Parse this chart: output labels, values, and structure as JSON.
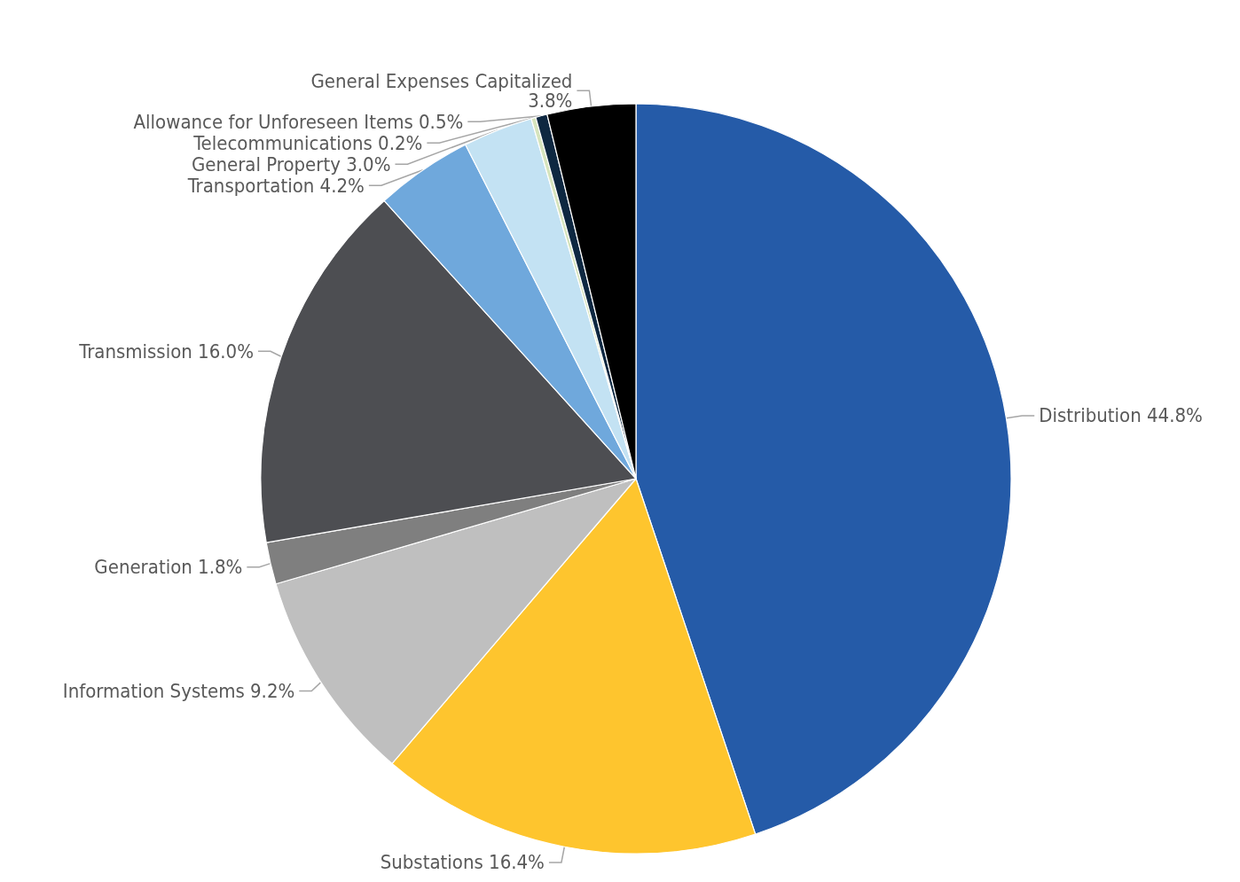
{
  "chart_data": {
    "type": "pie",
    "categories": [
      "Distribution",
      "Substations",
      "Information Systems",
      "Generation",
      "Transmission",
      "Transportation",
      "General Property",
      "Telecommunications",
      "Allowance for Unforeseen Items",
      "General Expenses Capitalized"
    ],
    "values": [
      44.8,
      16.4,
      9.2,
      1.8,
      16.0,
      4.2,
      3.0,
      0.2,
      0.5,
      3.8
    ],
    "colors": [
      "#255ba8",
      "#fec52e",
      "#bfbfbf",
      "#7f7f7f",
      "#4d4e52",
      "#6fa8dc",
      "#c3e2f3",
      "#d6e4bd",
      "#0e2841",
      "#000000"
    ],
    "value_labels": [
      "44.8%",
      "16.4%",
      "9.2%",
      "1.8%",
      "16.0%",
      "4.2%",
      "3.0%",
      "0.2%",
      "0.5%",
      "3.8%"
    ],
    "legend": false
  }
}
